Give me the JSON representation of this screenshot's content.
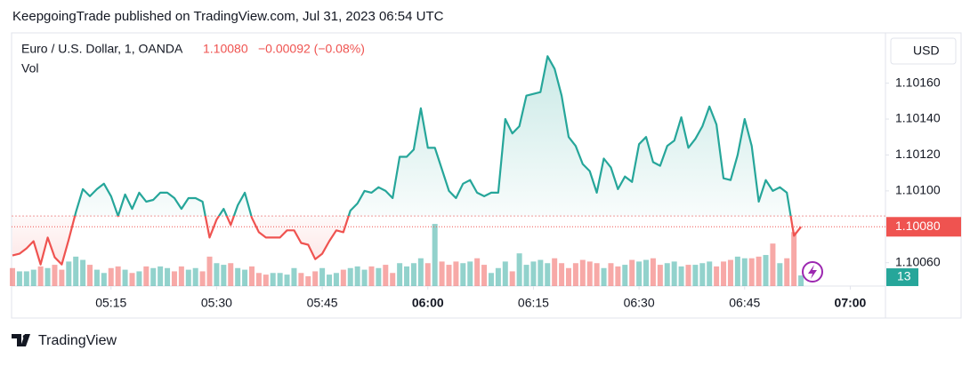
{
  "chart_data": {
    "type": "baseline",
    "title": "KeepgoingTrade published on TradingView.com, Jul 31, 2023 06:54 UTC",
    "header_price": "1.10080",
    "change": "−0.00092 (−0.08%)",
    "currency": "USD",
    "watermark": "TradingView",
    "x": [
      "05:01",
      "05:02",
      "05:03",
      "05:04",
      "05:05",
      "05:06",
      "05:07",
      "05:08",
      "05:09",
      "05:10",
      "05:11",
      "05:12",
      "05:13",
      "05:14",
      "05:15",
      "05:16",
      "05:17",
      "05:18",
      "05:19",
      "05:20",
      "05:21",
      "05:22",
      "05:23",
      "05:24",
      "05:25",
      "05:26",
      "05:27",
      "05:28",
      "05:29",
      "05:30",
      "05:31",
      "05:32",
      "05:33",
      "05:34",
      "05:35",
      "05:36",
      "05:37",
      "05:38",
      "05:39",
      "05:40",
      "05:41",
      "05:42",
      "05:43",
      "05:44",
      "05:45",
      "05:46",
      "05:47",
      "05:48",
      "05:49",
      "05:50",
      "05:51",
      "05:52",
      "05:53",
      "05:54",
      "05:55",
      "05:56",
      "05:57",
      "05:58",
      "05:59",
      "06:00",
      "06:01",
      "06:02",
      "06:03",
      "06:04",
      "06:05",
      "06:06",
      "06:07",
      "06:08",
      "06:09",
      "06:10",
      "06:11",
      "06:12",
      "06:13",
      "06:14",
      "06:15",
      "06:16",
      "06:17",
      "06:18",
      "06:19",
      "06:20",
      "06:21",
      "06:22",
      "06:23",
      "06:24",
      "06:25",
      "06:26",
      "06:27",
      "06:28",
      "06:29",
      "06:30",
      "06:31",
      "06:32",
      "06:33",
      "06:34",
      "06:35",
      "06:36",
      "06:37",
      "06:38",
      "06:39",
      "06:40",
      "06:41",
      "06:42",
      "06:43",
      "06:44",
      "06:45",
      "06:46",
      "06:47",
      "06:48",
      "06:49",
      "06:50",
      "06:51",
      "06:52",
      "06:53"
    ],
    "series": [
      {
        "name": "Euro / U.S. Dollar, 1, OANDA",
        "values": [
          1.10064,
          1.10065,
          1.10068,
          1.10072,
          1.10059,
          1.10074,
          1.10063,
          1.10059,
          1.10073,
          1.10088,
          1.10101,
          1.10097,
          1.10101,
          1.10104,
          1.10097,
          1.10086,
          1.10098,
          1.1009,
          1.10099,
          1.10094,
          1.10095,
          1.10099,
          1.10099,
          1.10096,
          1.1009,
          1.10096,
          1.10096,
          1.10094,
          1.10074,
          1.10084,
          1.1009,
          1.10081,
          1.10092,
          1.10099,
          1.10085,
          1.10077,
          1.10074,
          1.10074,
          1.10074,
          1.10078,
          1.10078,
          1.10071,
          1.1007,
          1.10062,
          1.10065,
          1.10072,
          1.10078,
          1.10077,
          1.10089,
          1.10093,
          1.101,
          1.10099,
          1.10102,
          1.101,
          1.10096,
          1.10119,
          1.10119,
          1.10123,
          1.10146,
          1.10124,
          1.10124,
          1.10112,
          1.101,
          1.10096,
          1.10104,
          1.10106,
          1.10099,
          1.10097,
          1.10099,
          1.10099,
          1.1014,
          1.10132,
          1.10136,
          1.10153,
          1.10154,
          1.10155,
          1.10175,
          1.10168,
          1.10153,
          1.1013,
          1.10125,
          1.10115,
          1.10111,
          1.10099,
          1.10118,
          1.10113,
          1.10101,
          1.10108,
          1.10105,
          1.10126,
          1.1013,
          1.10116,
          1.10114,
          1.10125,
          1.10128,
          1.10141,
          1.10124,
          1.10129,
          1.10136,
          1.10147,
          1.10137,
          1.10107,
          1.10106,
          1.1012,
          1.1014,
          1.10125,
          1.10094,
          1.10106,
          1.101,
          1.10102,
          1.10099,
          1.10075,
          1.1008
        ]
      },
      {
        "name": "Vol",
        "values": [
          22,
          18,
          18,
          20,
          24,
          22,
          26,
          20,
          30,
          36,
          32,
          26,
          20,
          16,
          22,
          24,
          20,
          16,
          18,
          24,
          22,
          24,
          22,
          18,
          24,
          20,
          22,
          18,
          36,
          28,
          26,
          28,
          22,
          20,
          24,
          16,
          14,
          16,
          16,
          14,
          22,
          16,
          12,
          18,
          22,
          14,
          16,
          20,
          22,
          24,
          20,
          24,
          22,
          26,
          16,
          28,
          24,
          28,
          34,
          28,
          76,
          30,
          26,
          30,
          28,
          30,
          34,
          26,
          16,
          22,
          30,
          18,
          40,
          26,
          30,
          32,
          28,
          34,
          28,
          22,
          28,
          32,
          30,
          28,
          22,
          28,
          24,
          26,
          32,
          30,
          32,
          34,
          26,
          28,
          30,
          24,
          26,
          26,
          28,
          30,
          24,
          30,
          32,
          36,
          34,
          34,
          36,
          38,
          52,
          28,
          34,
          66,
          13
        ]
      }
    ],
    "baseline": 1.10086,
    "up_color": "#26a69a",
    "down_color": "#ef5350",
    "xlim": [
      "05:01",
      "07:05"
    ],
    "xticks": [
      "05:15",
      "05:30",
      "05:45",
      "06:00",
      "06:15",
      "06:30",
      "06:45",
      "07:00"
    ],
    "ylim": [
      1.10047,
      1.10188
    ],
    "yticks": [
      {
        "value": 1.1006,
        "label": "1.10060"
      },
      {
        "value": 1.101,
        "label": "1.10100"
      },
      {
        "value": 1.1012,
        "label": "1.10120"
      },
      {
        "value": 1.1014,
        "label": "1.10140"
      },
      {
        "value": 1.1016,
        "label": "1.10160"
      }
    ],
    "grid": false
  }
}
